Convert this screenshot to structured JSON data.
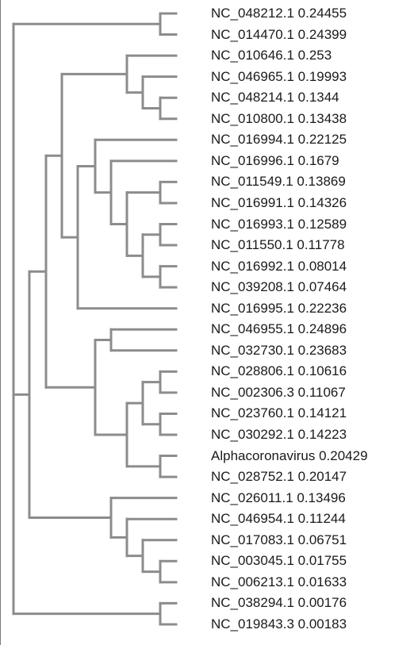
{
  "leaves": [
    {
      "label": "NC_048212.1 0.24455"
    },
    {
      "label": "NC_014470.1 0.24399"
    },
    {
      "label": "NC_010646.1 0.253"
    },
    {
      "label": "NC_046965.1 0.19993"
    },
    {
      "label": "NC_048214.1 0.1344"
    },
    {
      "label": "NC_010800.1 0.13438"
    },
    {
      "label": "NC_016994.1 0.22125"
    },
    {
      "label": "NC_016996.1 0.1679"
    },
    {
      "label": "NC_011549.1 0.13869"
    },
    {
      "label": "NC_016991.1 0.14326"
    },
    {
      "label": "NC_016993.1 0.12589"
    },
    {
      "label": "NC_011550.1 0.11778"
    },
    {
      "label": "NC_016992.1 0.08014"
    },
    {
      "label": "NC_039208.1 0.07464"
    },
    {
      "label": "NC_016995.1 0.22236"
    },
    {
      "label": "NC_046955.1 0.24896"
    },
    {
      "label": "NC_032730.1 0.23683"
    },
    {
      "label": "NC_028806.1 0.10616"
    },
    {
      "label": "NC_002306.3 0.11067"
    },
    {
      "label": "NC_023760.1 0.14121"
    },
    {
      "label": "NC_030292.1 0.14223"
    },
    {
      "label": "Alphacoronavirus 0.20429"
    },
    {
      "label": "NC_028752.1 0.20147"
    },
    {
      "label": "NC_026011.1 0.13496"
    },
    {
      "label": "NC_046954.1 0.11244"
    },
    {
      "label": "NC_017083.1 0.06751"
    },
    {
      "label": "NC_003045.1 0.01755"
    },
    {
      "label": "NC_006213.1 0.01633"
    },
    {
      "label": "NC_038294.1 0.00176"
    },
    {
      "label": "NC_019843.3 0.00183"
    }
  ],
  "style": {
    "branch_color": "#8c8c8c",
    "text_color": "#1a1a1a"
  }
}
